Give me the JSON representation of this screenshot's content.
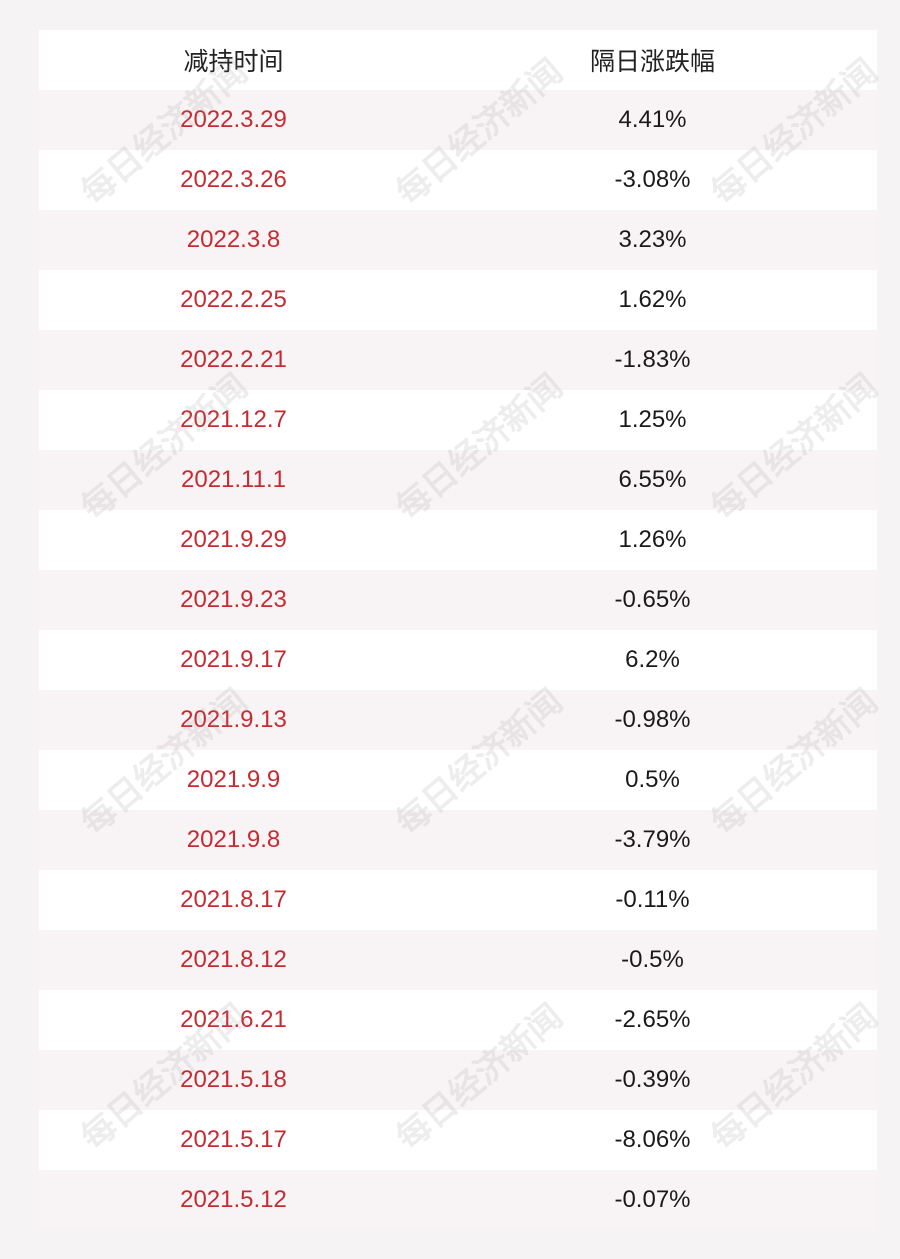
{
  "table": {
    "headers": [
      "减持时间",
      "隔日涨跌幅"
    ],
    "rows": [
      {
        "date": "2022.3.29",
        "change": "4.41%"
      },
      {
        "date": "2022.3.26",
        "change": "-3.08%"
      },
      {
        "date": "2022.3.8",
        "change": "3.23%"
      },
      {
        "date": "2022.2.25",
        "change": "1.62%"
      },
      {
        "date": "2022.2.21",
        "change": "-1.83%"
      },
      {
        "date": "2021.12.7",
        "change": "1.25%"
      },
      {
        "date": "2021.11.1",
        "change": "6.55%"
      },
      {
        "date": "2021.9.29",
        "change": "1.26%"
      },
      {
        "date": "2021.9.23",
        "change": "-0.65%"
      },
      {
        "date": "2021.9.17",
        "change": "6.2%"
      },
      {
        "date": "2021.9.13",
        "change": "-0.98%"
      },
      {
        "date": "2021.9.9",
        "change": "0.5%"
      },
      {
        "date": "2021.9.8",
        "change": "-3.79%"
      },
      {
        "date": "2021.8.17",
        "change": "-0.11%"
      },
      {
        "date": "2021.8.12",
        "change": "-0.5%"
      },
      {
        "date": "2021.6.21",
        "change": "-2.65%"
      },
      {
        "date": "2021.5.18",
        "change": "-0.39%"
      },
      {
        "date": "2021.5.17",
        "change": "-8.06%"
      },
      {
        "date": "2021.5.12",
        "change": "-0.07%"
      }
    ]
  },
  "watermark": {
    "text": "每日经济新闻"
  },
  "colors": {
    "date_text": "#c72b32",
    "page_bg": "#f6f3f4"
  }
}
